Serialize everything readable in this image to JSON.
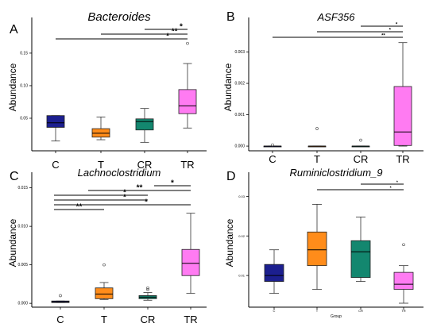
{
  "colors": {
    "C": "#1c1f8f",
    "T": "#ff8c1a",
    "CR": "#13876f",
    "TR": "#ff7bf2",
    "axis": "#000000"
  },
  "chart_data": [
    {
      "panel": "A",
      "type": "box",
      "title": "Bacteroides",
      "ylabel": "Abundance",
      "xlabel": "",
      "categories": [
        "C",
        "T",
        "CR",
        "TR"
      ],
      "ylim": [
        0,
        0.195
      ],
      "yticks": [
        0.05,
        0.1,
        0.15
      ],
      "ytick_labels": [
        "0.05",
        "0.10",
        "0.15"
      ],
      "boxes": [
        {
          "group": "C",
          "min": 0.015,
          "q1": 0.036,
          "median": 0.043,
          "q3": 0.054,
          "max": 0.054,
          "outliers": []
        },
        {
          "group": "T",
          "min": 0.017,
          "q1": 0.021,
          "median": 0.027,
          "q3": 0.034,
          "max": 0.052,
          "outliers": []
        },
        {
          "group": "CR",
          "min": 0.013,
          "q1": 0.032,
          "median": 0.045,
          "q3": 0.049,
          "max": 0.065,
          "outliers": []
        },
        {
          "group": "TR",
          "min": 0.035,
          "q1": 0.057,
          "median": 0.069,
          "q3": 0.094,
          "max": 0.134,
          "outliers": [
            0.165
          ]
        }
      ],
      "significance": [
        {
          "from": "CR",
          "to": "TR",
          "label": "*"
        },
        {
          "from": "T",
          "to": "TR",
          "label": "**"
        },
        {
          "from": "C",
          "to": "TR",
          "label": "*"
        }
      ]
    },
    {
      "panel": "B",
      "type": "box",
      "title": "ASF356",
      "ylabel": "Abundance",
      "xlabel": "",
      "categories": [
        "C",
        "T",
        "CR",
        "TR"
      ],
      "ylim": [
        -0.00015,
        0.0039
      ],
      "yticks": [
        0,
        0.001,
        0.002,
        0.003
      ],
      "ytick_labels": [
        "0.000",
        "0.001",
        "0.002",
        "0.003"
      ],
      "boxes": [
        {
          "group": "C",
          "min": 0,
          "q1": 0,
          "median": 0,
          "q3": 0,
          "max": 0,
          "outliers": [
            4e-05
          ]
        },
        {
          "group": "T",
          "min": 0,
          "q1": 0,
          "median": 0,
          "q3": 0,
          "max": 0,
          "outliers": [
            0.00056
          ]
        },
        {
          "group": "CR",
          "min": 0,
          "q1": 0,
          "median": 0,
          "q3": 0,
          "max": 0,
          "outliers": [
            0.00019
          ]
        },
        {
          "group": "TR",
          "min": 0,
          "q1": 2e-05,
          "median": 0.00045,
          "q3": 0.0019,
          "max": 0.0033,
          "outliers": []
        }
      ],
      "significance": [
        {
          "from": "CR",
          "to": "TR",
          "label": "*"
        },
        {
          "from": "T",
          "to": "TR",
          "label": "*"
        },
        {
          "from": "C",
          "to": "TR",
          "label": "**"
        }
      ]
    },
    {
      "panel": "C",
      "type": "box",
      "title": "Lachnoclostridium",
      "ylabel": "Abundance",
      "xlabel": "",
      "categories": [
        "C",
        "T",
        "CR",
        "TR"
      ],
      "ylim": [
        -0.0005,
        0.0162
      ],
      "yticks": [
        0,
        0.005,
        0.01,
        0.015
      ],
      "ytick_labels": [
        "0.000",
        "0.005",
        "0.010",
        "0.015"
      ],
      "boxes": [
        {
          "group": "C",
          "min": 0.0001,
          "q1": 0.0001,
          "median": 0.0002,
          "q3": 0.0003,
          "max": 0.0003,
          "outliers": [
            0.001
          ]
        },
        {
          "group": "T",
          "min": 0.0005,
          "q1": 0.0006,
          "median": 0.0012,
          "q3": 0.002,
          "max": 0.0027,
          "outliers": [
            0.005
          ]
        },
        {
          "group": "CR",
          "min": 0.0004,
          "q1": 0.0006,
          "median": 0.0008,
          "q3": 0.001,
          "max": 0.0014,
          "outliers": [
            0.0018,
            0.002
          ]
        },
        {
          "group": "TR",
          "min": 0.0013,
          "q1": 0.0036,
          "median": 0.0052,
          "q3": 0.007,
          "max": 0.0117,
          "outliers": []
        }
      ],
      "significance": [
        {
          "from": "CR",
          "to": "TR",
          "label": "*"
        },
        {
          "from": "T",
          "to": "TR",
          "label": "**"
        },
        {
          "from": "C",
          "to": "CR",
          "label": "*"
        },
        {
          "from": "C",
          "to": "CR",
          "label": "*"
        },
        {
          "from": "C",
          "to": "TR",
          "label": "*"
        },
        {
          "from": "C",
          "to": "T",
          "label": "**"
        }
      ]
    },
    {
      "panel": "D",
      "type": "box",
      "title": "Ruminiclostridium_9",
      "ylabel": "Abundance",
      "xlabel": "Group",
      "categories": [
        "C",
        "T",
        "CR",
        "TR"
      ],
      "ylim": [
        0.002,
        0.0345
      ],
      "yticks": [
        0.01,
        0.02,
        0.03
      ],
      "ytick_labels": [
        "0.01",
        "0.02",
        "0.03"
      ],
      "boxes": [
        {
          "group": "C",
          "min": 0.0055,
          "q1": 0.0085,
          "median": 0.01,
          "q3": 0.0128,
          "max": 0.0165,
          "outliers": []
        },
        {
          "group": "T",
          "min": 0.0065,
          "q1": 0.0125,
          "median": 0.0165,
          "q3": 0.021,
          "max": 0.028,
          "outliers": []
        },
        {
          "group": "CR",
          "min": 0.0085,
          "q1": 0.0095,
          "median": 0.016,
          "q3": 0.0188,
          "max": 0.0248,
          "outliers": []
        },
        {
          "group": "TR",
          "min": 0.003,
          "q1": 0.0065,
          "median": 0.0078,
          "q3": 0.0108,
          "max": 0.0125,
          "outliers": [
            0.0178
          ]
        }
      ],
      "significance": [
        {
          "from": "CR",
          "to": "TR",
          "label": "*"
        },
        {
          "from": "T",
          "to": "TR",
          "label": "*"
        }
      ]
    }
  ]
}
